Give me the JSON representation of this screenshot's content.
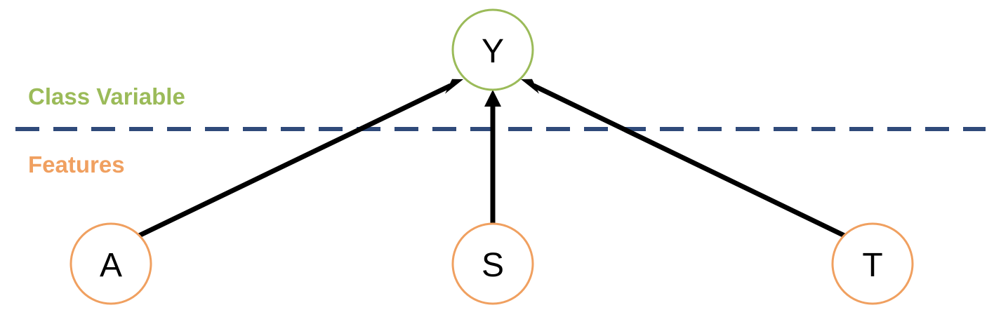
{
  "colors": {
    "class_color": "#9bbb59",
    "feature_color": "#f0a060",
    "divider_color": "#2f4a7a",
    "edge_color": "#000000"
  },
  "regions": {
    "class_label": "Class Variable",
    "features_label": "Features"
  },
  "nodes": {
    "y": {
      "label": "Y",
      "role": "class"
    },
    "a": {
      "label": "A",
      "role": "feature"
    },
    "s": {
      "label": "S",
      "role": "feature"
    },
    "t": {
      "label": "T",
      "role": "feature"
    }
  },
  "edges": [
    {
      "from": "A",
      "to": "Y"
    },
    {
      "from": "S",
      "to": "Y"
    },
    {
      "from": "T",
      "to": "Y"
    }
  ]
}
